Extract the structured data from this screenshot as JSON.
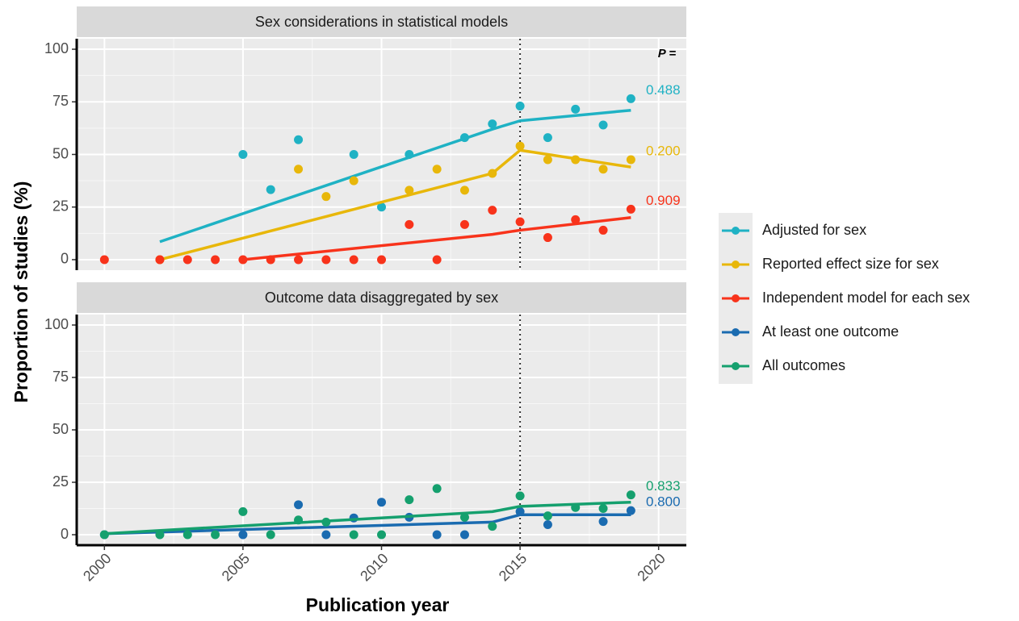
{
  "chart_data": [
    {
      "type": "scatter",
      "title": "Sex considerations in statistical models",
      "y_label": "Proportion of studies (%)",
      "xlim": [
        1999,
        2021
      ],
      "xticks": [
        2000,
        2005,
        2010,
        2015,
        2020
      ],
      "ylim": [
        -5,
        105
      ],
      "yticks": [
        0,
        25,
        50,
        75,
        100
      ],
      "grid": true,
      "breakpoint": 2015,
      "p_header": "P =",
      "series": [
        {
          "name": "Adjusted for sex",
          "color": "#1fb2c4",
          "p_value": "0.488",
          "x": [
            2005,
            2006,
            2007,
            2009,
            2010,
            2011,
            2013,
            2014,
            2015,
            2016,
            2017,
            2018,
            2019
          ],
          "values": [
            50,
            33.3,
            57,
            50,
            25,
            50,
            58,
            64.5,
            73,
            58,
            71.5,
            64,
            76.5
          ],
          "fit_x": [
            2002,
            2014,
            2015,
            2019
          ],
          "fit_values": [
            8.5,
            62,
            66,
            71
          ]
        },
        {
          "name": "Reported effect size for sex",
          "color": "#e8b70a",
          "p_value": "0.200",
          "x": [
            2002,
            2007,
            2008,
            2009,
            2011,
            2012,
            2013,
            2014,
            2015,
            2016,
            2017,
            2018,
            2019
          ],
          "values": [
            0,
            43,
            30,
            37.5,
            33,
            43,
            33,
            41,
            54,
            47.5,
            47.5,
            43,
            47.5
          ],
          "fit_x": [
            2002,
            2014,
            2015,
            2019
          ],
          "fit_values": [
            0,
            41,
            52,
            44
          ]
        },
        {
          "name": "Independent model for each sex",
          "color": "#f8331b",
          "p_value": "0.909",
          "x": [
            2000,
            2002,
            2003,
            2004,
            2005,
            2006,
            2007,
            2008,
            2009,
            2010,
            2011,
            2012,
            2013,
            2014,
            2015,
            2016,
            2017,
            2018,
            2019
          ],
          "values": [
            0,
            0,
            0,
            0,
            0,
            0,
            0,
            0,
            0,
            0,
            16.7,
            0,
            16.7,
            23.5,
            18,
            10.5,
            19,
            14,
            24
          ],
          "fit_x": [
            2005,
            2014,
            2015,
            2019
          ],
          "fit_values": [
            0,
            12,
            14,
            20
          ]
        }
      ]
    },
    {
      "type": "scatter",
      "title": "Outcome data disaggregated by sex",
      "x_label": "Publication year",
      "xlim": [
        1999,
        2021
      ],
      "xticks": [
        2000,
        2005,
        2010,
        2015,
        2020
      ],
      "ylim": [
        -5,
        105
      ],
      "yticks": [
        0,
        25,
        50,
        75,
        100
      ],
      "grid": true,
      "breakpoint": 2015,
      "series": [
        {
          "name": "At least one outcome",
          "color": "#1a6bb0",
          "p_value": "0.800",
          "x": [
            2000,
            2005,
            2007,
            2008,
            2009,
            2010,
            2011,
            2012,
            2013,
            2015,
            2016,
            2018,
            2019
          ],
          "values": [
            0,
            0,
            14.3,
            0,
            8,
            15.5,
            8.3,
            0,
            0,
            11,
            4.8,
            6.3,
            11.5
          ],
          "fit_x": [
            2000,
            2014,
            2015,
            2019
          ],
          "fit_values": [
            0.5,
            6,
            9.5,
            9.5
          ]
        },
        {
          "name": "All outcomes",
          "color": "#15a06e",
          "p_value": "0.833",
          "x": [
            2000,
            2002,
            2003,
            2004,
            2005,
            2006,
            2007,
            2008,
            2009,
            2010,
            2011,
            2012,
            2013,
            2014,
            2015,
            2016,
            2017,
            2018,
            2019
          ],
          "values": [
            0,
            0,
            0,
            0,
            11,
            0,
            7,
            6,
            0,
            0,
            16.7,
            22,
            8.3,
            4,
            18.5,
            9,
            13,
            12.5,
            19
          ],
          "fit_x": [
            2000,
            2014,
            2015,
            2019
          ],
          "fit_values": [
            0.5,
            11,
            13.5,
            15.5
          ]
        }
      ]
    }
  ]
}
